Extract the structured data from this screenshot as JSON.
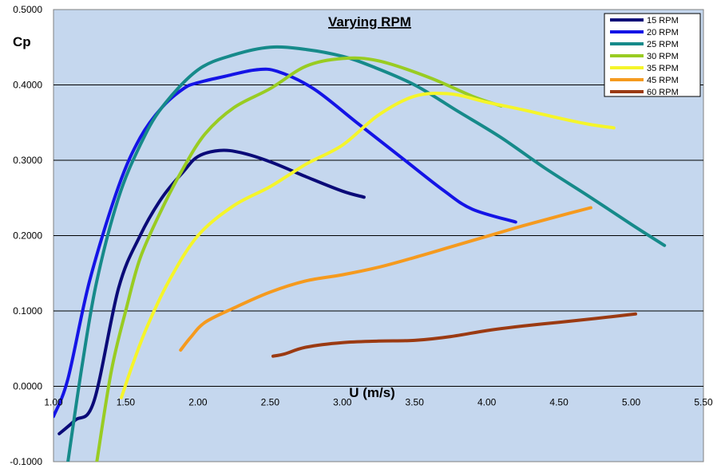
{
  "chart_data": {
    "type": "line",
    "title": "Varying RPM",
    "xlabel": "U (m/s)",
    "ylabel": "Cp",
    "xlim": [
      1.0,
      5.5
    ],
    "ylim": [
      -0.1,
      0.5
    ],
    "grid": "horizontal",
    "legend_position": "top-right",
    "x_ticks": [
      "1.00",
      "1.50",
      "2.00",
      "2.50",
      "3.00",
      "3.50",
      "4.00",
      "4.50",
      "5.00",
      "5.50"
    ],
    "y_ticks": [
      "-0.1000",
      "0.0000",
      "0.1000",
      "0.2000",
      "0.3000",
      "0.4000",
      "0.5000"
    ],
    "x_tick_values": [
      1.0,
      1.5,
      2.0,
      2.5,
      3.0,
      3.5,
      4.0,
      4.5,
      5.0,
      5.5
    ],
    "y_tick_values": [
      -0.1,
      0.0,
      0.1,
      0.2,
      0.3,
      0.4,
      0.5
    ],
    "series": [
      {
        "name": "15 RPM",
        "color": "#0a0a78",
        "x": [
          1.04,
          1.15,
          1.28,
          1.45,
          1.6,
          1.75,
          1.9,
          2.0,
          2.15,
          2.3,
          2.5,
          2.75,
          3.0,
          3.15
        ],
        "y": [
          -0.063,
          -0.045,
          -0.02,
          0.13,
          0.2,
          0.25,
          0.285,
          0.305,
          0.313,
          0.31,
          0.298,
          0.278,
          0.259,
          0.251
        ]
      },
      {
        "name": "20 RPM",
        "color": "#1414e6",
        "x": [
          1.0,
          1.1,
          1.25,
          1.45,
          1.6,
          1.75,
          1.9,
          2.0,
          2.2,
          2.4,
          2.55,
          2.8,
          3.1,
          3.4,
          3.7,
          3.9,
          4.2
        ],
        "y": [
          -0.04,
          0.01,
          0.14,
          0.265,
          0.33,
          0.37,
          0.395,
          0.403,
          0.412,
          0.42,
          0.418,
          0.395,
          0.35,
          0.305,
          0.26,
          0.235,
          0.218
        ]
      },
      {
        "name": "25 RPM",
        "color": "#168a8a",
        "x": [
          1.1,
          1.2,
          1.3,
          1.45,
          1.6,
          1.75,
          2.0,
          2.25,
          2.5,
          2.75,
          3.0,
          3.2,
          3.5,
          3.8,
          4.1,
          4.4,
          4.7,
          5.0,
          5.23
        ],
        "y": [
          -0.1,
          0.03,
          0.14,
          0.25,
          0.32,
          0.37,
          0.42,
          0.44,
          0.45,
          0.447,
          0.438,
          0.425,
          0.4,
          0.365,
          0.33,
          0.29,
          0.253,
          0.215,
          0.187
        ]
      },
      {
        "name": "30 RPM",
        "color": "#99cc22",
        "x": [
          1.3,
          1.4,
          1.5,
          1.6,
          1.75,
          1.9,
          2.05,
          2.25,
          2.5,
          2.75,
          3.0,
          3.25,
          3.6,
          3.9,
          4.1
        ],
        "y": [
          -0.1,
          0.02,
          0.1,
          0.17,
          0.235,
          0.29,
          0.335,
          0.37,
          0.395,
          0.425,
          0.435,
          0.432,
          0.41,
          0.385,
          0.372
        ]
      },
      {
        "name": "35 RPM",
        "color": "#f5f52a",
        "x": [
          1.47,
          1.55,
          1.65,
          1.8,
          2.0,
          2.25,
          2.5,
          2.75,
          3.0,
          3.25,
          3.5,
          3.75,
          4.0,
          4.25,
          4.5,
          4.7,
          4.88
        ],
        "y": [
          -0.015,
          0.03,
          0.08,
          0.14,
          0.2,
          0.24,
          0.265,
          0.295,
          0.32,
          0.36,
          0.385,
          0.388,
          0.377,
          0.367,
          0.356,
          0.348,
          0.343
        ]
      },
      {
        "name": "45 RPM",
        "color": "#f59a1e",
        "x": [
          1.88,
          1.95,
          2.05,
          2.25,
          2.5,
          2.75,
          3.0,
          3.25,
          3.5,
          3.75,
          4.0,
          4.25,
          4.5,
          4.72
        ],
        "y": [
          0.048,
          0.065,
          0.085,
          0.104,
          0.125,
          0.14,
          0.148,
          0.158,
          0.171,
          0.185,
          0.199,
          0.213,
          0.226,
          0.237
        ]
      },
      {
        "name": "60 RPM",
        "color": "#9b3a12",
        "x": [
          2.52,
          2.6,
          2.75,
          3.0,
          3.25,
          3.5,
          3.75,
          4.0,
          4.25,
          4.5,
          4.75,
          5.03
        ],
        "y": [
          0.04,
          0.043,
          0.052,
          0.058,
          0.06,
          0.061,
          0.066,
          0.074,
          0.08,
          0.085,
          0.09,
          0.096
        ]
      }
    ]
  }
}
